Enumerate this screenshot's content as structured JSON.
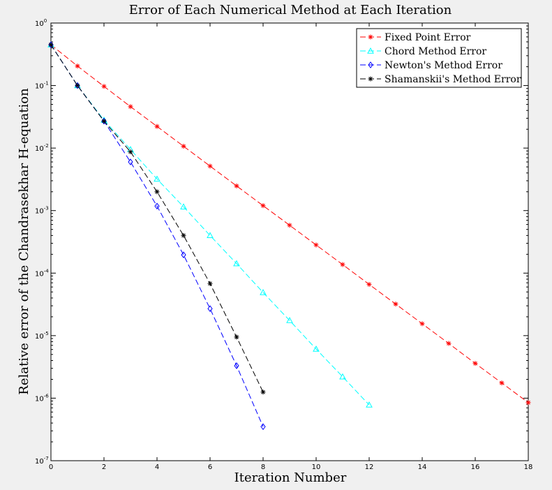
{
  "chart_data": {
    "type": "line",
    "title": "Error of Each Numerical Method at Each Iteration",
    "xlabel": "Iteration Number",
    "ylabel": "Relative error of the Chandrasekhar H-equation",
    "xlim": [
      0,
      18
    ],
    "ylim": [
      1e-07,
      1
    ],
    "yscale": "log",
    "xticks": [
      0,
      2,
      4,
      6,
      8,
      10,
      12,
      14,
      16,
      18
    ],
    "xtick_labels": [
      "0",
      "2",
      "4",
      "6",
      "8",
      "10",
      "12",
      "14",
      "16",
      "18"
    ],
    "yticks": [
      {
        "value": 1e-07,
        "base": "10",
        "exp": "-7"
      },
      {
        "value": 1e-06,
        "base": "10",
        "exp": "-6"
      },
      {
        "value": 1e-05,
        "base": "10",
        "exp": "-5"
      },
      {
        "value": 0.0001,
        "base": "10",
        "exp": "-4"
      },
      {
        "value": 0.001,
        "base": "10",
        "exp": "-3"
      },
      {
        "value": 0.01,
        "base": "10",
        "exp": "-2"
      },
      {
        "value": 0.1,
        "base": "10",
        "exp": "-1"
      },
      {
        "value": 1,
        "base": "10",
        "exp": "0"
      }
    ],
    "grid": false,
    "legend_position": "top-right",
    "series": [
      {
        "name": "Fixed Point Error",
        "color": "#ff0000",
        "marker": "asterisk",
        "linestyle": "dashed",
        "x": [
          0,
          1,
          2,
          3,
          4,
          5,
          6,
          7,
          8,
          9,
          10,
          11,
          12,
          13,
          14,
          15,
          16,
          17,
          18
        ],
        "y": [
          0.45,
          0.205,
          0.097,
          0.046,
          0.0222,
          0.0107,
          0.00515,
          0.00248,
          0.0012,
          0.000583,
          0.000282,
          0.000137,
          6.6e-05,
          3.2e-05,
          1.55e-05,
          7.5e-06,
          3.6e-06,
          1.75e-06,
          8.5e-07
        ]
      },
      {
        "name": "Chord Method Error",
        "color": "#00ffff",
        "marker": "triangle",
        "linestyle": "dashed",
        "x": [
          0,
          1,
          2,
          3,
          4,
          5,
          6,
          7,
          8,
          9,
          10,
          11,
          12
        ],
        "y": [
          0.45,
          0.1,
          0.028,
          0.0095,
          0.0032,
          0.00115,
          0.0004,
          0.000142,
          4.9e-05,
          1.75e-05,
          6.1e-06,
          2.2e-06,
          7.8e-07
        ]
      },
      {
        "name": "Newton's Method Error",
        "color": "#0000ff",
        "marker": "diamond",
        "linestyle": "dashed",
        "x": [
          0,
          1,
          2,
          3,
          4,
          5,
          6,
          7,
          8
        ],
        "y": [
          0.45,
          0.1,
          0.027,
          0.006,
          0.00118,
          0.000196,
          2.7e-05,
          3.3e-06,
          3.5e-07
        ]
      },
      {
        "name": "Shamanskii's Method Error",
        "color": "#000000",
        "marker": "asterisk",
        "linestyle": "dashed",
        "x": [
          0,
          1,
          2,
          3,
          4,
          5,
          6,
          7,
          8
        ],
        "y": [
          0.45,
          0.1,
          0.027,
          0.0087,
          0.002,
          0.0004,
          6.8e-05,
          9.5e-06,
          1.25e-06
        ]
      }
    ]
  }
}
